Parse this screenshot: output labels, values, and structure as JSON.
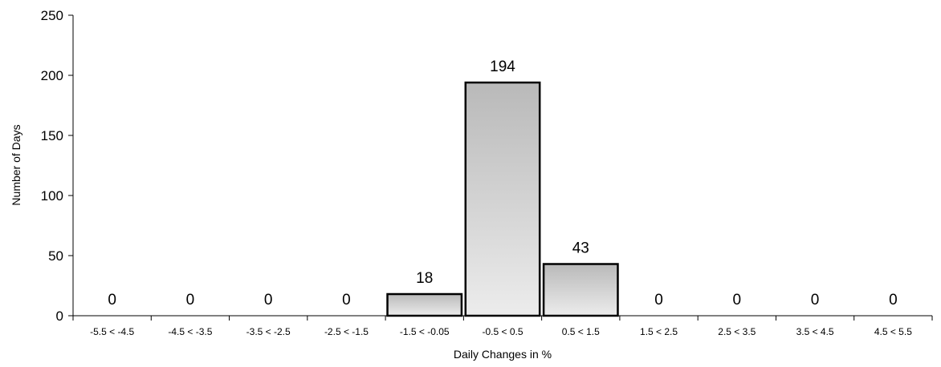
{
  "chart_data": {
    "type": "bar",
    "title": "",
    "xlabel": "Daily Changes in %",
    "ylabel": "Number of Days",
    "categories": [
      "-5.5 < -4.5",
      "-4.5 < -3.5",
      "-3.5 < -2.5",
      "-2.5 < -1.5",
      "-1.5 < -0.05",
      "-0.5 < 0.5",
      "0.5 < 1.5",
      "1.5 < 2.5",
      "2.5 < 3.5",
      "3.5 < 4.5",
      "4.5 < 5.5"
    ],
    "values": [
      0,
      0,
      0,
      0,
      18,
      194,
      43,
      0,
      0,
      0,
      0
    ],
    "ylim": [
      0,
      250
    ],
    "yticks": [
      0,
      50,
      100,
      150,
      200,
      250
    ],
    "grid": false,
    "legend": "none",
    "data_labels": true,
    "colors": {
      "bar_fill_top": "#b9b9b9",
      "bar_fill_bottom": "#ececec",
      "bar_stroke": "#000000",
      "axis": "#000000"
    }
  }
}
